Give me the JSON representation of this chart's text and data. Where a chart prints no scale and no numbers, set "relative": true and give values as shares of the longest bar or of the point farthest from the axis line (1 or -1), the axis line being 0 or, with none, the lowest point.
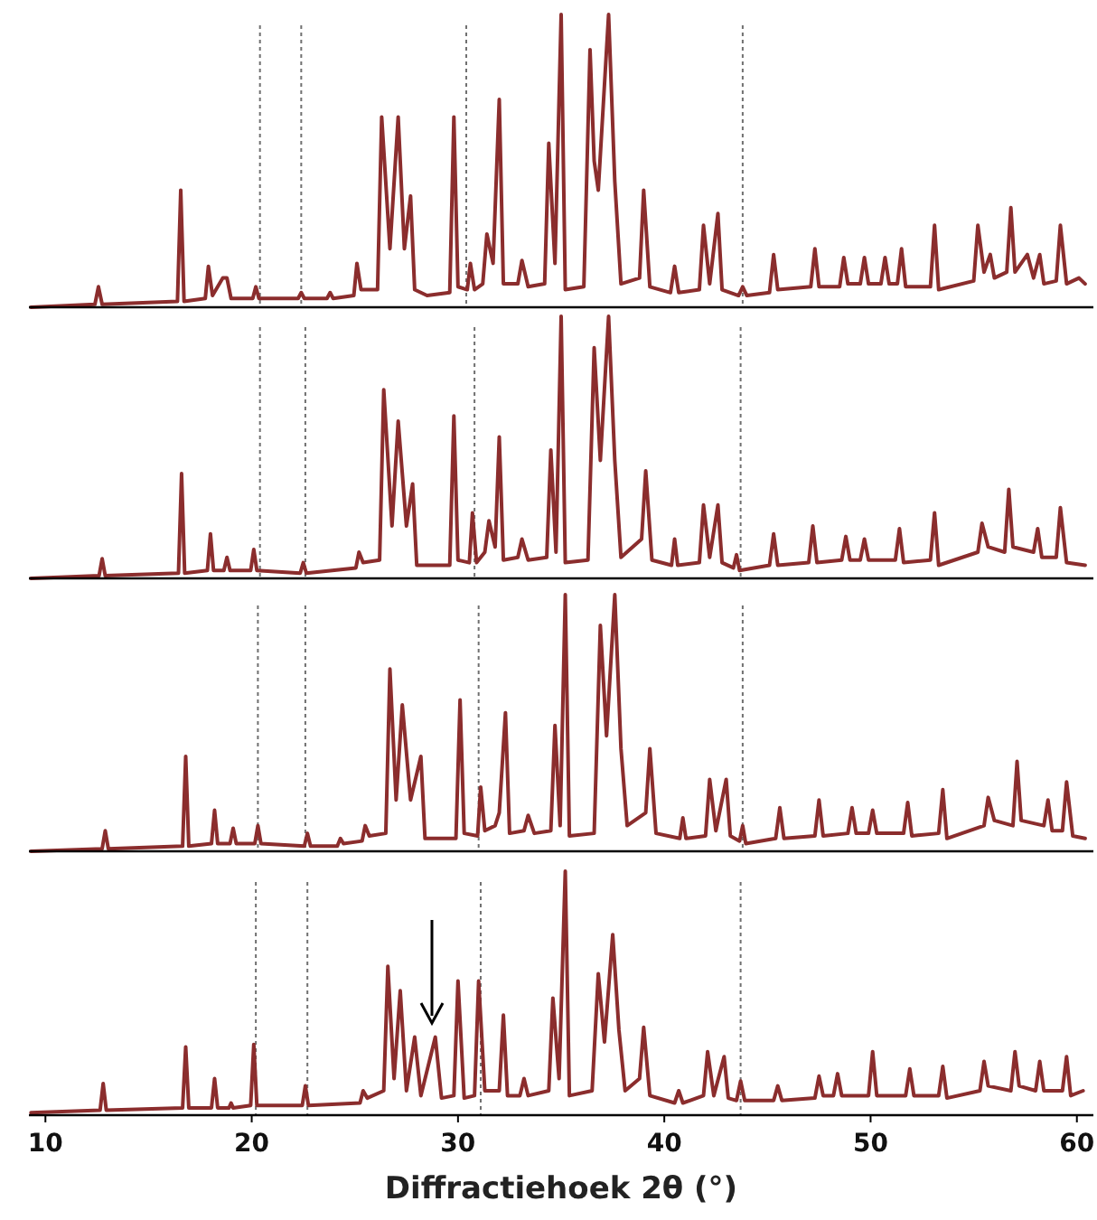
{
  "chart_data": [
    {
      "type": "line",
      "relative": true,
      "color": "#8b2d2d",
      "xlim": [
        9.2,
        60.8
      ],
      "x": [
        9.3,
        12.4,
        12.57,
        12.75,
        16.4,
        16.56,
        16.72,
        17.75,
        17.9,
        18.1,
        18.6,
        18.8,
        19.0,
        20.05,
        20.2,
        20.35,
        22.25,
        22.4,
        22.55,
        23.65,
        23.8,
        23.95,
        24.95,
        25.1,
        25.3,
        26.1,
        26.3,
        26.7,
        27.1,
        27.4,
        27.7,
        27.9,
        28.5,
        29.6,
        29.8,
        30.0,
        30.45,
        30.6,
        30.8,
        31.2,
        31.4,
        31.7,
        32.0,
        32.2,
        32.9,
        33.1,
        33.4,
        34.2,
        34.4,
        34.7,
        35.0,
        35.2,
        36.1,
        36.4,
        36.6,
        36.8,
        37.3,
        37.6,
        37.9,
        38.8,
        39.0,
        39.3,
        40.3,
        40.5,
        40.7,
        41.7,
        41.9,
        42.2,
        42.6,
        42.8,
        43.6,
        43.8,
        44.0,
        45.1,
        45.3,
        45.5,
        47.1,
        47.3,
        47.5,
        48.5,
        48.7,
        48.9,
        49.5,
        49.7,
        49.9,
        50.5,
        50.7,
        50.9,
        51.3,
        51.5,
        51.7,
        52.9,
        53.1,
        53.3,
        55.0,
        55.2,
        55.5,
        55.8,
        56.0,
        56.6,
        56.8,
        57.0,
        57.6,
        57.9,
        58.2,
        58.4,
        59.0,
        59.2,
        59.5,
        60.1,
        60.4
      ],
      "values": [
        0,
        0.01,
        0.07,
        0.01,
        0.02,
        0.4,
        0.02,
        0.03,
        0.14,
        0.04,
        0.1,
        0.1,
        0.03,
        0.03,
        0.07,
        0.03,
        0.03,
        0.05,
        0.03,
        0.03,
        0.05,
        0.03,
        0.04,
        0.15,
        0.06,
        0.06,
        0.65,
        0.2,
        0.65,
        0.2,
        0.38,
        0.06,
        0.04,
        0.05,
        0.65,
        0.07,
        0.06,
        0.15,
        0.06,
        0.08,
        0.25,
        0.15,
        0.71,
        0.08,
        0.08,
        0.16,
        0.07,
        0.08,
        0.56,
        0.15,
        1.0,
        0.06,
        0.07,
        0.88,
        0.5,
        0.4,
        1.0,
        0.43,
        0.08,
        0.1,
        0.4,
        0.07,
        0.05,
        0.14,
        0.05,
        0.06,
        0.28,
        0.08,
        0.32,
        0.06,
        0.04,
        0.07,
        0.04,
        0.05,
        0.18,
        0.06,
        0.07,
        0.2,
        0.07,
        0.07,
        0.17,
        0.08,
        0.08,
        0.17,
        0.08,
        0.08,
        0.17,
        0.08,
        0.08,
        0.2,
        0.07,
        0.07,
        0.28,
        0.06,
        0.09,
        0.28,
        0.12,
        0.18,
        0.1,
        0.12,
        0.34,
        0.12,
        0.18,
        0.1,
        0.18,
        0.08,
        0.09,
        0.28,
        0.08,
        0.1,
        0.08
      ],
      "ref_lines": [
        {
          "axis": "x",
          "value": 20.4,
          "color": "#707070",
          "line_style": "dotted"
        },
        {
          "axis": "x",
          "value": 22.4,
          "color": "#707070",
          "line_style": "dotted"
        },
        {
          "axis": "x",
          "value": 30.4,
          "color": "#707070",
          "line_style": "dotted"
        },
        {
          "axis": "x",
          "value": 43.8,
          "color": "#707070",
          "line_style": "dotted"
        }
      ]
    },
    {
      "type": "line",
      "relative": true,
      "color": "#8b2d2d",
      "xlim": [
        9.2,
        60.8
      ],
      "x": [
        9.3,
        12.6,
        12.75,
        12.9,
        16.45,
        16.6,
        16.75,
        17.85,
        18.0,
        18.15,
        18.65,
        18.8,
        18.95,
        19.95,
        20.1,
        20.25,
        22.35,
        22.5,
        22.65,
        25.05,
        25.2,
        25.4,
        26.2,
        26.4,
        26.8,
        27.1,
        27.5,
        27.8,
        28.0,
        29.6,
        29.8,
        30.0,
        30.55,
        30.7,
        30.9,
        31.3,
        31.5,
        31.8,
        32.0,
        32.2,
        32.9,
        33.1,
        33.4,
        34.3,
        34.5,
        34.75,
        35.0,
        35.2,
        36.3,
        36.6,
        36.9,
        37.3,
        37.6,
        37.9,
        38.9,
        39.1,
        39.4,
        40.35,
        40.5,
        40.65,
        41.7,
        41.9,
        42.2,
        42.6,
        42.8,
        43.35,
        43.5,
        43.65,
        45.1,
        45.3,
        45.5,
        47.0,
        47.2,
        47.4,
        48.6,
        48.8,
        49.0,
        49.5,
        49.7,
        49.9,
        51.2,
        51.4,
        51.6,
        52.9,
        53.1,
        53.3,
        55.2,
        55.4,
        55.7,
        56.5,
        56.7,
        56.9,
        57.9,
        58.1,
        58.3,
        59.0,
        59.2,
        59.5,
        60.4
      ],
      "values": [
        0,
        0.01,
        0.075,
        0.01,
        0.02,
        0.4,
        0.02,
        0.03,
        0.17,
        0.03,
        0.03,
        0.08,
        0.03,
        0.03,
        0.11,
        0.03,
        0.02,
        0.06,
        0.02,
        0.04,
        0.1,
        0.06,
        0.07,
        0.72,
        0.2,
        0.6,
        0.2,
        0.36,
        0.05,
        0.05,
        0.62,
        0.07,
        0.06,
        0.25,
        0.06,
        0.1,
        0.22,
        0.12,
        0.54,
        0.07,
        0.08,
        0.15,
        0.07,
        0.08,
        0.49,
        0.1,
        1.0,
        0.06,
        0.07,
        0.88,
        0.45,
        1.0,
        0.45,
        0.08,
        0.15,
        0.41,
        0.07,
        0.05,
        0.15,
        0.05,
        0.06,
        0.28,
        0.08,
        0.28,
        0.06,
        0.04,
        0.09,
        0.03,
        0.05,
        0.17,
        0.05,
        0.06,
        0.2,
        0.06,
        0.07,
        0.16,
        0.07,
        0.07,
        0.15,
        0.07,
        0.07,
        0.19,
        0.06,
        0.07,
        0.25,
        0.05,
        0.1,
        0.21,
        0.12,
        0.1,
        0.34,
        0.12,
        0.1,
        0.19,
        0.08,
        0.08,
        0.27,
        0.06,
        0.05
      ],
      "ref_lines": [
        {
          "axis": "x",
          "value": 20.4,
          "color": "#707070",
          "line_style": "dotted"
        },
        {
          "axis": "x",
          "value": 22.6,
          "color": "#707070",
          "line_style": "dotted"
        },
        {
          "axis": "x",
          "value": 30.8,
          "color": "#707070",
          "line_style": "dotted"
        },
        {
          "axis": "x",
          "value": 43.7,
          "color": "#707070",
          "line_style": "dotted"
        }
      ]
    },
    {
      "type": "line",
      "relative": true,
      "color": "#8b2d2d",
      "xlim": [
        9.2,
        60.8
      ],
      "x": [
        9.3,
        12.75,
        12.9,
        13.05,
        16.65,
        16.8,
        16.95,
        18.05,
        18.2,
        18.35,
        18.95,
        19.1,
        19.25,
        20.15,
        20.3,
        20.45,
        22.55,
        22.7,
        22.85,
        24.15,
        24.3,
        24.45,
        25.35,
        25.5,
        25.7,
        26.5,
        26.7,
        27.0,
        27.3,
        27.7,
        28.2,
        28.4,
        29.9,
        30.1,
        30.3,
        30.95,
        31.1,
        31.3,
        31.8,
        32.0,
        32.3,
        32.5,
        33.2,
        33.4,
        33.7,
        34.5,
        34.7,
        34.95,
        35.2,
        35.4,
        36.6,
        36.9,
        37.2,
        37.6,
        37.9,
        38.2,
        39.1,
        39.3,
        39.6,
        40.75,
        40.9,
        41.05,
        42.0,
        42.2,
        42.5,
        43.0,
        43.2,
        43.65,
        43.8,
        43.95,
        45.4,
        45.6,
        45.8,
        47.3,
        47.5,
        47.7,
        48.9,
        49.1,
        49.3,
        49.9,
        50.1,
        50.3,
        51.6,
        51.8,
        52.0,
        53.3,
        53.5,
        53.7,
        55.5,
        55.7,
        56.0,
        56.9,
        57.1,
        57.3,
        58.4,
        58.6,
        58.8,
        59.3,
        59.5,
        59.8,
        60.4
      ],
      "values": [
        0,
        0.01,
        0.08,
        0.01,
        0.02,
        0.37,
        0.02,
        0.03,
        0.16,
        0.03,
        0.03,
        0.09,
        0.03,
        0.03,
        0.1,
        0.03,
        0.02,
        0.07,
        0.02,
        0.02,
        0.05,
        0.03,
        0.04,
        0.1,
        0.06,
        0.07,
        0.71,
        0.2,
        0.57,
        0.2,
        0.37,
        0.05,
        0.05,
        0.59,
        0.07,
        0.06,
        0.25,
        0.08,
        0.1,
        0.15,
        0.54,
        0.07,
        0.08,
        0.14,
        0.07,
        0.08,
        0.49,
        0.1,
        1.0,
        0.06,
        0.07,
        0.88,
        0.45,
        1.0,
        0.4,
        0.1,
        0.15,
        0.4,
        0.07,
        0.05,
        0.13,
        0.05,
        0.06,
        0.28,
        0.08,
        0.28,
        0.06,
        0.04,
        0.1,
        0.03,
        0.05,
        0.17,
        0.05,
        0.06,
        0.2,
        0.06,
        0.07,
        0.17,
        0.07,
        0.07,
        0.16,
        0.07,
        0.07,
        0.19,
        0.06,
        0.07,
        0.24,
        0.05,
        0.1,
        0.21,
        0.12,
        0.1,
        0.35,
        0.12,
        0.1,
        0.2,
        0.08,
        0.08,
        0.27,
        0.06,
        0.05
      ],
      "ref_lines": [
        {
          "axis": "x",
          "value": 20.3,
          "color": "#707070",
          "line_style": "dotted"
        },
        {
          "axis": "x",
          "value": 22.6,
          "color": "#707070",
          "line_style": "dotted"
        },
        {
          "axis": "x",
          "value": 31.0,
          "color": "#707070",
          "line_style": "dotted"
        },
        {
          "axis": "x",
          "value": 43.8,
          "color": "#707070",
          "line_style": "dotted"
        }
      ]
    },
    {
      "type": "line",
      "relative": true,
      "color": "#8b2d2d",
      "xlim": [
        9.2,
        60.8
      ],
      "xticks": [
        10,
        20,
        30,
        40,
        50,
        60
      ],
      "xlabel": "Diffractiehoek 2θ (°)",
      "x": [
        9.3,
        12.65,
        12.8,
        12.95,
        16.65,
        16.8,
        16.95,
        18.05,
        18.2,
        18.35,
        18.9,
        19.0,
        19.1,
        19.95,
        20.1,
        20.25,
        22.45,
        22.6,
        22.75,
        25.25,
        25.4,
        25.6,
        26.4,
        26.6,
        26.9,
        27.2,
        27.5,
        27.9,
        28.2,
        28.9,
        29.2,
        29.8,
        30.0,
        30.3,
        30.8,
        31.0,
        31.3,
        32.0,
        32.2,
        32.4,
        33.0,
        33.2,
        33.4,
        34.4,
        34.6,
        34.9,
        35.2,
        35.4,
        36.5,
        36.8,
        37.1,
        37.5,
        37.8,
        38.1,
        38.8,
        39.0,
        39.3,
        40.5,
        40.7,
        40.9,
        41.9,
        42.1,
        42.4,
        42.9,
        43.1,
        43.5,
        43.7,
        43.9,
        45.3,
        45.5,
        45.7,
        47.3,
        47.5,
        47.7,
        48.2,
        48.4,
        48.6,
        49.9,
        50.1,
        50.3,
        51.7,
        51.9,
        52.1,
        53.3,
        53.5,
        53.7,
        55.3,
        55.5,
        55.7,
        56.8,
        57.0,
        57.2,
        58.0,
        58.2,
        58.4,
        59.3,
        59.5,
        59.7,
        60.3
      ],
      "values": [
        0.01,
        0.02,
        0.13,
        0.02,
        0.03,
        0.28,
        0.03,
        0.03,
        0.15,
        0.03,
        0.03,
        0.05,
        0.03,
        0.04,
        0.29,
        0.04,
        0.04,
        0.12,
        0.04,
        0.05,
        0.1,
        0.07,
        0.1,
        0.61,
        0.15,
        0.51,
        0.1,
        0.32,
        0.08,
        0.32,
        0.07,
        0.08,
        0.55,
        0.07,
        0.08,
        0.55,
        0.1,
        0.1,
        0.41,
        0.08,
        0.08,
        0.15,
        0.08,
        0.1,
        0.48,
        0.15,
        1.0,
        0.08,
        0.1,
        0.58,
        0.3,
        0.74,
        0.35,
        0.1,
        0.15,
        0.36,
        0.08,
        0.05,
        0.1,
        0.05,
        0.08,
        0.26,
        0.08,
        0.24,
        0.07,
        0.06,
        0.14,
        0.06,
        0.06,
        0.12,
        0.06,
        0.07,
        0.16,
        0.08,
        0.08,
        0.17,
        0.08,
        0.08,
        0.26,
        0.08,
        0.08,
        0.19,
        0.08,
        0.08,
        0.2,
        0.07,
        0.1,
        0.22,
        0.12,
        0.1,
        0.26,
        0.12,
        0.1,
        0.22,
        0.1,
        0.1,
        0.24,
        0.08,
        0.1
      ],
      "ref_lines": [
        {
          "axis": "x",
          "value": 20.2,
          "color": "#707070",
          "line_style": "dotted"
        },
        {
          "axis": "x",
          "value": 22.7,
          "color": "#707070",
          "line_style": "dotted"
        },
        {
          "axis": "x",
          "value": 31.1,
          "color": "#707070",
          "line_style": "dotted"
        },
        {
          "axis": "x",
          "value": 43.7,
          "color": "#707070",
          "line_style": "dotted"
        }
      ]
    }
  ]
}
